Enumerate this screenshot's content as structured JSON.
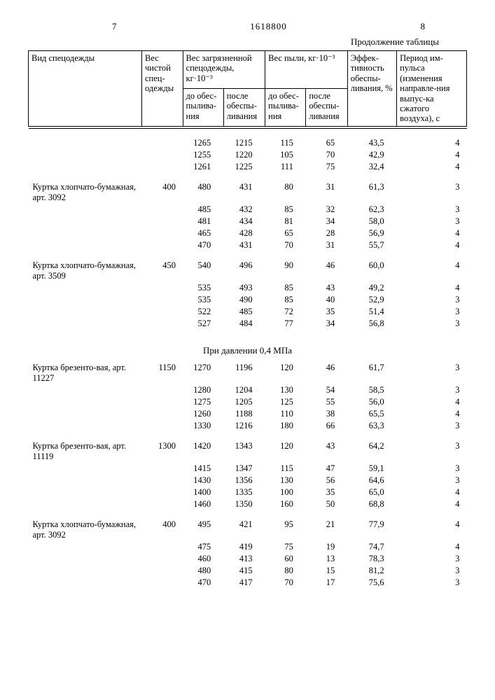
{
  "header": {
    "left_page": "7",
    "doc_number": "1618800",
    "right_page": "8",
    "continuation": "Продолжение таблицы"
  },
  "columns": {
    "c1": "Вид спецодежды",
    "c2": "Вес чистой спец-одежды",
    "c3": "Вес загрязненной спецодежды, кг·10⁻³",
    "c3a": "до обес-пылива-ния",
    "c3b": "после обеспы-ливания",
    "c4": "Вес пыли, кг·10⁻³",
    "c4a": "до обес-пылива-ния",
    "c4b": "после обеспы-ливания",
    "c5": "Эффек-тивность обеспы-ливания, %",
    "c6": "Период им-пульса (изменения направле-ния выпус-ка сжатого воздуха), с"
  },
  "section_label": "При давлении 0,4 МПа",
  "groups": [
    {
      "label": "",
      "weight": "",
      "rows": [
        [
          "1265",
          "1215",
          "115",
          "65",
          "43,5",
          "4"
        ],
        [
          "1255",
          "1220",
          "105",
          "70",
          "42,9",
          "4"
        ],
        [
          "1261",
          "1225",
          "111",
          "75",
          "32,4",
          "4"
        ]
      ]
    },
    {
      "label": "Куртка хлопчато-бумажная, арт. 3092",
      "weight": "400",
      "rows": [
        [
          "480",
          "431",
          "80",
          "31",
          "61,3",
          "3"
        ],
        [
          "485",
          "432",
          "85",
          "32",
          "62,3",
          "3"
        ],
        [
          "481",
          "434",
          "81",
          "34",
          "58,0",
          "3"
        ],
        [
          "465",
          "428",
          "65",
          "28",
          "56,9",
          "4"
        ],
        [
          "470",
          "431",
          "70",
          "31",
          "55,7",
          "4"
        ]
      ]
    },
    {
      "label": "Куртка хлопчато-бумажная, арт. 3509",
      "weight": "450",
      "rows": [
        [
          "540",
          "496",
          "90",
          "46",
          "60,0",
          "4"
        ],
        [
          "535",
          "493",
          "85",
          "43",
          "49,2",
          "4"
        ],
        [
          "535",
          "490",
          "85",
          "40",
          "52,9",
          "3"
        ],
        [
          "522",
          "485",
          "72",
          "35",
          "51,4",
          "3"
        ],
        [
          "527",
          "484",
          "77",
          "34",
          "56,8",
          "3"
        ]
      ]
    }
  ],
  "groups2": [
    {
      "label": "Куртка брезенто-вая, арт. 11227",
      "weight": "1150",
      "rows": [
        [
          "1270",
          "1196",
          "120",
          "46",
          "61,7",
          "3"
        ],
        [
          "1280",
          "1204",
          "130",
          "54",
          "58,5",
          "3"
        ],
        [
          "1275",
          "1205",
          "125",
          "55",
          "56,0",
          "4"
        ],
        [
          "1260",
          "1188",
          "110",
          "38",
          "65,5",
          "4"
        ],
        [
          "1330",
          "1216",
          "180",
          "66",
          "63,3",
          "3"
        ]
      ]
    },
    {
      "label": "Куртка брезенто-вая, арт. 11119",
      "weight": "1300",
      "rows": [
        [
          "1420",
          "1343",
          "120",
          "43",
          "64,2",
          "3"
        ],
        [
          "1415",
          "1347",
          "115",
          "47",
          "59,1",
          "3"
        ],
        [
          "1430",
          "1356",
          "130",
          "56",
          "64,6",
          "3"
        ],
        [
          "1400",
          "1335",
          "100",
          "35",
          "65,0",
          "4"
        ],
        [
          "1460",
          "1350",
          "160",
          "50",
          "68,8",
          "4"
        ]
      ]
    },
    {
      "label": "Куртка хлопчато-бумажная, арт. 3092",
      "weight": "400",
      "rows": [
        [
          "495",
          "421",
          "95",
          "21",
          "77,9",
          "4"
        ],
        [
          "475",
          "419",
          "75",
          "19",
          "74,7",
          "4"
        ],
        [
          "460",
          "413",
          "60",
          "13",
          "78,3",
          "3"
        ],
        [
          "480",
          "415",
          "80",
          "15",
          "81,2",
          "3"
        ],
        [
          "470",
          "417",
          "70",
          "17",
          "75,6",
          "3"
        ]
      ]
    }
  ]
}
